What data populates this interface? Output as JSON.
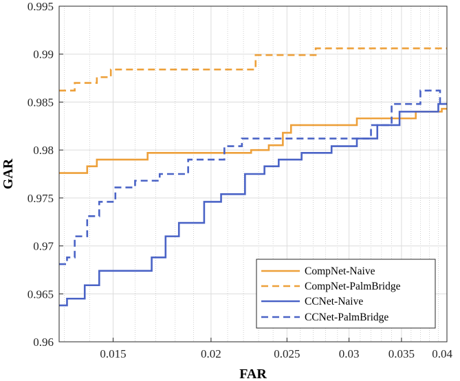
{
  "chart_data": {
    "type": "line",
    "title": "",
    "xlabel": "FAR",
    "ylabel": "GAR",
    "xscale": "log",
    "xlim": [
      0.0128,
      0.04
    ],
    "ylim": [
      0.96,
      0.995
    ],
    "xticks": [
      0.015,
      0.02,
      0.025,
      0.03,
      0.035,
      0.04
    ],
    "xtick_labels": [
      "0.015",
      "0.02",
      "0.025",
      "0.03",
      "0.035",
      "0.04"
    ],
    "yticks": [
      0.96,
      0.965,
      0.97,
      0.975,
      0.98,
      0.985,
      0.99,
      0.995
    ],
    "ytick_labels": [
      "0.96",
      "0.965",
      "0.97",
      "0.975",
      "0.98",
      "0.985",
      "0.99",
      "0.995"
    ],
    "grid": true,
    "legend_position": "bottom-right",
    "series": [
      {
        "name": "CompNet-Naive",
        "color": "#EDA03A",
        "style": "solid",
        "x": [
          0.0128,
          0.0139,
          0.0139,
          0.0143,
          0.0143,
          0.0166,
          0.0166,
          0.0225,
          0.0225,
          0.0237,
          0.0237,
          0.0247,
          0.0247,
          0.0253,
          0.0253,
          0.0307,
          0.0307,
          0.0365,
          0.0365,
          0.0394,
          0.0394,
          0.04
        ],
        "y": [
          0.9776,
          0.9776,
          0.9783,
          0.9783,
          0.979,
          0.979,
          0.9797,
          0.9797,
          0.98,
          0.98,
          0.9805,
          0.9805,
          0.9818,
          0.9818,
          0.9826,
          0.9826,
          0.9833,
          0.9833,
          0.984,
          0.984,
          0.9843,
          0.9843
        ]
      },
      {
        "name": "CompNet-PalmBridge",
        "color": "#EDA03A",
        "style": "dashed",
        "x": [
          0.0128,
          0.0134,
          0.0134,
          0.0143,
          0.0143,
          0.0149,
          0.0149,
          0.0228,
          0.0228,
          0.0272,
          0.0272,
          0.0394,
          0.0394,
          0.04
        ],
        "y": [
          0.9862,
          0.9862,
          0.987,
          0.987,
          0.9876,
          0.9876,
          0.9884,
          0.9884,
          0.9899,
          0.9899,
          0.9906,
          0.9906,
          0.9906,
          0.9906
        ]
      },
      {
        "name": "CCNet-Naive",
        "color": "#4A63C6",
        "style": "solid",
        "x": [
          0.0128,
          0.0131,
          0.0131,
          0.0138,
          0.0138,
          0.0144,
          0.0144,
          0.0168,
          0.0168,
          0.0175,
          0.0175,
          0.0182,
          0.0182,
          0.0196,
          0.0196,
          0.0206,
          0.0206,
          0.0221,
          0.0221,
          0.0234,
          0.0234,
          0.0244,
          0.0244,
          0.0261,
          0.0261,
          0.0285,
          0.0285,
          0.0307,
          0.0307,
          0.0326,
          0.0326,
          0.0348,
          0.0348,
          0.039,
          0.039,
          0.04
        ],
        "y": [
          0.9638,
          0.9638,
          0.9645,
          0.9645,
          0.9659,
          0.9659,
          0.9674,
          0.9674,
          0.9688,
          0.9688,
          0.971,
          0.971,
          0.9724,
          0.9724,
          0.9746,
          0.9746,
          0.9754,
          0.9754,
          0.9775,
          0.9775,
          0.9783,
          0.9783,
          0.979,
          0.979,
          0.9797,
          0.9797,
          0.9804,
          0.9804,
          0.9812,
          0.9812,
          0.9826,
          0.9826,
          0.984,
          0.984,
          0.9848,
          0.9848
        ]
      },
      {
        "name": "CCNet-PalmBridge",
        "color": "#4A63C6",
        "style": "dashed",
        "x": [
          0.0128,
          0.0131,
          0.0131,
          0.0134,
          0.0134,
          0.0139,
          0.0139,
          0.0144,
          0.0144,
          0.0151,
          0.0151,
          0.016,
          0.016,
          0.0172,
          0.0172,
          0.0187,
          0.0187,
          0.0208,
          0.0208,
          0.0219,
          0.0219,
          0.0242,
          0.0242,
          0.0256,
          0.0256,
          0.032,
          0.032,
          0.034,
          0.034,
          0.037,
          0.037,
          0.0392,
          0.0392,
          0.04
        ],
        "y": [
          0.9681,
          0.9681,
          0.9688,
          0.9688,
          0.971,
          0.971,
          0.9731,
          0.9731,
          0.9746,
          0.9746,
          0.9761,
          0.9761,
          0.9768,
          0.9768,
          0.9775,
          0.9775,
          0.979,
          0.979,
          0.9804,
          0.9804,
          0.9812,
          0.9812,
          0.9812,
          0.9812,
          0.9812,
          0.9812,
          0.9826,
          0.9826,
          0.9848,
          0.9848,
          0.9862,
          0.9862,
          0.9848,
          0.9848
        ]
      }
    ]
  }
}
